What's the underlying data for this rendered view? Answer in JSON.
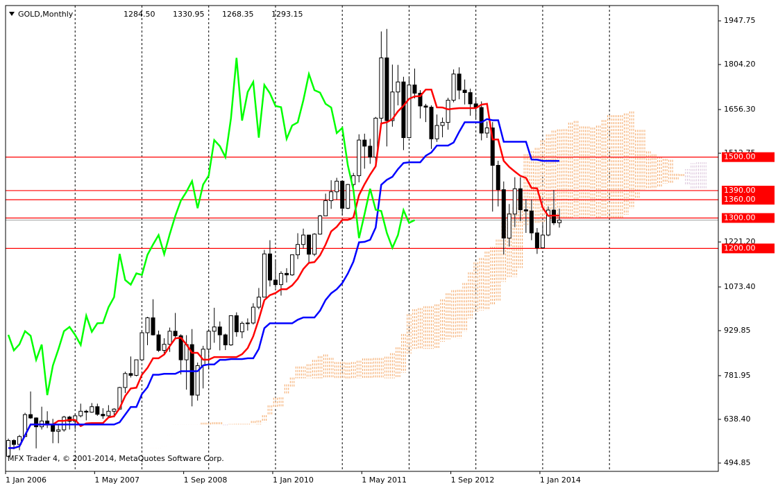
{
  "chart_data": {
    "type": "candlestick",
    "symbol": "GOLD,Monthly",
    "header_values": [
      "1284.50",
      "1330.95",
      "1268.35",
      "1293.15"
    ],
    "watermark": "MFX Trader 4, © 2001-2014, MetaQuotes Software Corp.",
    "x": [
      "2006-01-01",
      "2006-02-01",
      "2006-03-01",
      "2006-04-01",
      "2006-05-01",
      "2006-06-01",
      "2006-07-01",
      "2006-08-01",
      "2006-09-01",
      "2006-10-01",
      "2006-11-01",
      "2006-12-01",
      "2007-01-01",
      "2007-02-01",
      "2007-03-01",
      "2007-04-01",
      "2007-05-01",
      "2007-06-01",
      "2007-07-01",
      "2007-08-01",
      "2007-09-01",
      "2007-10-01",
      "2007-11-01",
      "2007-12-01",
      "2008-01-01",
      "2008-02-01",
      "2008-03-01",
      "2008-04-01",
      "2008-05-01",
      "2008-06-01",
      "2008-07-01",
      "2008-08-01",
      "2008-09-01",
      "2008-10-01",
      "2008-11-01",
      "2008-12-01",
      "2009-01-01",
      "2009-02-01",
      "2009-03-01",
      "2009-04-01",
      "2009-05-01",
      "2009-06-01",
      "2009-07-01",
      "2009-08-01",
      "2009-09-01",
      "2009-10-01",
      "2009-11-01",
      "2009-12-01",
      "2010-01-01",
      "2010-02-01",
      "2010-03-01",
      "2010-04-01",
      "2010-05-01",
      "2010-06-01",
      "2010-07-01",
      "2010-08-01",
      "2010-09-01",
      "2010-10-01",
      "2010-11-01",
      "2010-12-01",
      "2011-01-01",
      "2011-02-01",
      "2011-03-01",
      "2011-04-01",
      "2011-05-01",
      "2011-06-01",
      "2011-07-01",
      "2011-08-01",
      "2011-09-01",
      "2011-10-01",
      "2011-11-01",
      "2011-12-01",
      "2012-01-01",
      "2012-02-01",
      "2012-03-01",
      "2012-04-01",
      "2012-05-01",
      "2012-06-01",
      "2012-07-01",
      "2012-08-01",
      "2012-09-01",
      "2012-10-01",
      "2012-11-01",
      "2012-12-01",
      "2013-01-01",
      "2013-02-01",
      "2013-03-01",
      "2013-04-01",
      "2013-05-01",
      "2013-06-01",
      "2013-07-01",
      "2013-08-01",
      "2013-09-01",
      "2013-10-01",
      "2013-11-01",
      "2013-12-01",
      "2014-01-01",
      "2014-02-01",
      "2014-03-01",
      "2014-04-01"
    ],
    "ohlc": [
      [
        517,
        575,
        513,
        569
      ],
      [
        569,
        573,
        540,
        556
      ],
      [
        556,
        587,
        537,
        582
      ],
      [
        582,
        660,
        580,
        654
      ],
      [
        654,
        730,
        640,
        643
      ],
      [
        643,
        645,
        543,
        614
      ],
      [
        614,
        680,
        605,
        633
      ],
      [
        633,
        665,
        610,
        623
      ],
      [
        623,
        640,
        560,
        599
      ],
      [
        599,
        620,
        560,
        604
      ],
      [
        604,
        650,
        598,
        646
      ],
      [
        646,
        650,
        605,
        632
      ],
      [
        632,
        656,
        605,
        650
      ],
      [
        650,
        690,
        645,
        665
      ],
      [
        665,
        670,
        635,
        662
      ],
      [
        662,
        692,
        660,
        680
      ],
      [
        680,
        690,
        650,
        655
      ],
      [
        655,
        675,
        640,
        650
      ],
      [
        650,
        685,
        645,
        665
      ],
      [
        665,
        675,
        645,
        672
      ],
      [
        672,
        745,
        670,
        743
      ],
      [
        743,
        795,
        725,
        789
      ],
      [
        789,
        845,
        776,
        783
      ],
      [
        783,
        835,
        780,
        834
      ],
      [
        834,
        930,
        830,
        923
      ],
      [
        923,
        975,
        882,
        972
      ],
      [
        972,
        1033,
        914,
        916
      ],
      [
        916,
        930,
        860,
        865
      ],
      [
        865,
        905,
        850,
        885
      ],
      [
        885,
        940,
        860,
        928
      ],
      [
        928,
        988,
        905,
        913
      ],
      [
        913,
        918,
        786,
        834
      ],
      [
        834,
        915,
        736,
        884
      ],
      [
        884,
        935,
        681,
        718
      ],
      [
        718,
        825,
        700,
        815
      ],
      [
        815,
        880,
        740,
        869
      ],
      [
        869,
        935,
        803,
        928
      ],
      [
        928,
        1005,
        890,
        942
      ],
      [
        942,
        960,
        865,
        916
      ],
      [
        916,
        920,
        866,
        883
      ],
      [
        883,
        980,
        880,
        979
      ],
      [
        979,
        990,
        910,
        926
      ],
      [
        926,
        960,
        905,
        954
      ],
      [
        954,
        970,
        930,
        955
      ],
      [
        955,
        1020,
        950,
        1007
      ],
      [
        1007,
        1070,
        1000,
        1040
      ],
      [
        1040,
        1195,
        1040,
        1182
      ],
      [
        1182,
        1227,
        1075,
        1096
      ],
      [
        1096,
        1162,
        1070,
        1081
      ],
      [
        1081,
        1125,
        1045,
        1118
      ],
      [
        1118,
        1135,
        1088,
        1113
      ],
      [
        1113,
        1180,
        1110,
        1179
      ],
      [
        1179,
        1250,
        1165,
        1213
      ],
      [
        1213,
        1265,
        1200,
        1244
      ],
      [
        1244,
        1245,
        1155,
        1181
      ],
      [
        1181,
        1250,
        1175,
        1247
      ],
      [
        1247,
        1310,
        1245,
        1307
      ],
      [
        1307,
        1380,
        1310,
        1357
      ],
      [
        1357,
        1424,
        1330,
        1386
      ],
      [
        1386,
        1432,
        1360,
        1421
      ],
      [
        1421,
        1424,
        1308,
        1332
      ],
      [
        1332,
        1412,
        1329,
        1410
      ],
      [
        1410,
        1448,
        1380,
        1439
      ],
      [
        1439,
        1575,
        1417,
        1556
      ],
      [
        1556,
        1577,
        1462,
        1536
      ],
      [
        1536,
        1560,
        1478,
        1500
      ],
      [
        1500,
        1632,
        1480,
        1628
      ],
      [
        1628,
        1913,
        1600,
        1826
      ],
      [
        1826,
        1921,
        1535,
        1620
      ],
      [
        1620,
        1804,
        1600,
        1714
      ],
      [
        1714,
        1803,
        1670,
        1747
      ],
      [
        1747,
        1764,
        1523,
        1564
      ],
      [
        1564,
        1764,
        1563,
        1737
      ],
      [
        1737,
        1791,
        1693,
        1710
      ],
      [
        1710,
        1720,
        1627,
        1668
      ],
      [
        1668,
        1675,
        1615,
        1664
      ],
      [
        1664,
        1670,
        1527,
        1560
      ],
      [
        1560,
        1640,
        1550,
        1604
      ],
      [
        1604,
        1630,
        1565,
        1614
      ],
      [
        1614,
        1695,
        1590,
        1687
      ],
      [
        1687,
        1788,
        1680,
        1773
      ],
      [
        1773,
        1795,
        1690,
        1720
      ],
      [
        1720,
        1755,
        1673,
        1712
      ],
      [
        1712,
        1725,
        1636,
        1675
      ],
      [
        1675,
        1697,
        1626,
        1663
      ],
      [
        1663,
        1683,
        1555,
        1579
      ],
      [
        1579,
        1617,
        1563,
        1596
      ],
      [
        1596,
        1615,
        1321,
        1473
      ],
      [
        1473,
        1488,
        1338,
        1393
      ],
      [
        1393,
        1420,
        1180,
        1234
      ],
      [
        1234,
        1346,
        1206,
        1313
      ],
      [
        1313,
        1434,
        1270,
        1396
      ],
      [
        1396,
        1434,
        1290,
        1327
      ],
      [
        1327,
        1362,
        1251,
        1323
      ],
      [
        1323,
        1361,
        1227,
        1251
      ],
      [
        1251,
        1267,
        1182,
        1202
      ],
      [
        1202,
        1280,
        1200,
        1244
      ],
      [
        1244,
        1338,
        1240,
        1326
      ],
      [
        1326,
        1392,
        1277,
        1284
      ],
      [
        1284.5,
        1330.95,
        1268.35,
        1293.15
      ]
    ],
    "ylim": [
      467.5,
      1998
    ],
    "yticks": [
      1947.75,
      {
        "value": 1804.2,
        "label": "1804.20"
      },
      {
        "value": 1656.3,
        "label": "1656.30"
      },
      1512.75,
      {
        "value": 1221.2,
        "label": "1221.20"
      },
      {
        "value": 1073.4,
        "label": "1073.40"
      },
      929.85,
      781.95,
      {
        "value": 638.4,
        "label": "638.40"
      },
      494.85
    ],
    "xticks": [
      {
        "value": "2006-01-01",
        "label": "1 Jan 2006"
      },
      {
        "value": "2007-05-01",
        "label": "1 May 2007"
      },
      {
        "value": "2008-09-01",
        "label": "1 Sep 2008"
      },
      {
        "value": "2010-01-01",
        "label": "1 Jan 2010"
      },
      {
        "value": "2011-05-01",
        "label": "1 May 2011"
      },
      {
        "value": "2012-09-01",
        "label": "1 Sep 2012"
      },
      {
        "value": "2014-01-01",
        "label": "1 Jan 2014"
      }
    ],
    "xgrid": [
      "2007-01-01",
      "2008-01-01",
      "2009-01-01",
      "2010-01-01",
      "2011-01-01",
      "2012-01-01",
      "2013-01-01",
      "2014-01-01",
      "2015-01-01"
    ],
    "levels": [
      1500,
      1390,
      1360,
      1300,
      1200
    ],
    "value_labels": [
      "1500.00",
      "1390.00",
      "1360.00",
      "1300.00",
      "1200.00"
    ],
    "colors": {
      "candle": "#000000",
      "bull": "#ffffff",
      "bear": "#000000",
      "level": "#ff0000",
      "tenkan": "#ff0000",
      "kijun": "#0000ff",
      "chikou": "#00ff00",
      "cloud_up": "#f4a460",
      "cloud_down": "#d8bfd8",
      "price_line": "#a0a0a0"
    }
  }
}
